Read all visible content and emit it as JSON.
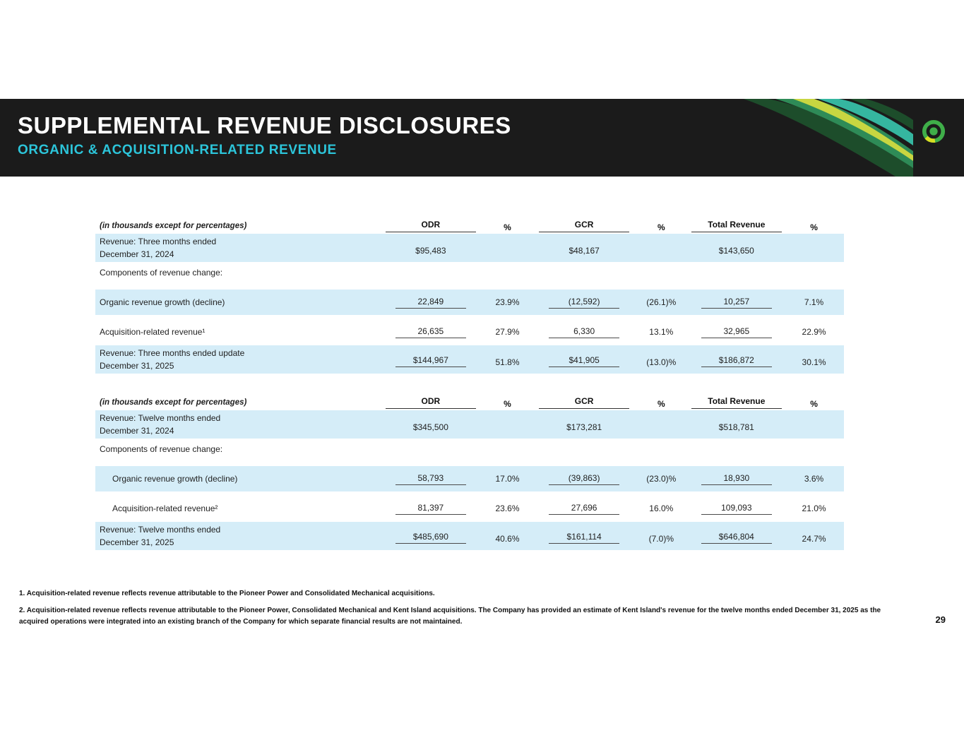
{
  "slide": {
    "title": "SUPPLEMENTAL REVENUE DISCLOSURES",
    "subtitle": "ORGANIC & ACQUISITION-RELATED REVENUE",
    "page_number": "29"
  },
  "colors": {
    "header_bg": "#1b1b1b",
    "accent_cyan": "#2cc5da",
    "row_shade": "#d5edf8",
    "logo_green": "#3fae49",
    "logo_yellow": "#d7df23"
  },
  "icons": {
    "logo": "company-logo-icon",
    "swoosh": "ribbon-swoosh-graphic"
  },
  "tables": [
    {
      "caption": "(in thousands except for percentages)",
      "columns": [
        "ODR",
        "%",
        "GCR",
        "%",
        "Total Revenue",
        "%"
      ],
      "rows": [
        {
          "label": "Revenue: Three months ended",
          "sublabel": "December 31, 2024",
          "values": [
            "$95,483",
            "",
            "$48,167",
            "",
            "$143,650",
            ""
          ],
          "shaded": true,
          "underline": false,
          "indent": false
        },
        {
          "label": "Components of revenue change:",
          "sublabel": "",
          "values": [
            "",
            "",
            "",
            "",
            "",
            ""
          ],
          "shaded": false,
          "underline": false,
          "indent": false
        },
        {
          "label": "Organic revenue growth (decline)",
          "sublabel": "",
          "values": [
            "22,849",
            "23.9%",
            "(12,592)",
            "(26.1)%",
            "10,257",
            "7.1%"
          ],
          "shaded": true,
          "underline": true,
          "indent": false
        },
        {
          "label": "Acquisition-related revenue¹",
          "sublabel": "",
          "values": [
            "26,635",
            "27.9%",
            "6,330",
            "13.1%",
            "32,965",
            "22.9%"
          ],
          "shaded": false,
          "underline": true,
          "indent": false
        },
        {
          "label": "Revenue: Three months ended update",
          "sublabel": "December 31, 2025",
          "values": [
            "$144,967",
            "51.8%",
            "$41,905",
            "(13.0)%",
            "$186,872",
            "30.1%"
          ],
          "shaded": true,
          "underline": true,
          "indent": false
        }
      ]
    },
    {
      "caption": "(in thousands except for percentages)",
      "columns": [
        "ODR",
        "%",
        "GCR",
        "%",
        "Total Revenue",
        "%"
      ],
      "rows": [
        {
          "label": "Revenue: Twelve months ended",
          "sublabel": "December 31, 2024",
          "values": [
            "$345,500",
            "",
            "$173,281",
            "",
            "$518,781",
            ""
          ],
          "shaded": true,
          "underline": false,
          "indent": false
        },
        {
          "label": "Components of revenue change:",
          "sublabel": "",
          "values": [
            "",
            "",
            "",
            "",
            "",
            ""
          ],
          "shaded": false,
          "underline": false,
          "indent": false
        },
        {
          "label": "Organic revenue growth (decline)",
          "sublabel": "",
          "values": [
            "58,793",
            "17.0%",
            "(39,863)",
            "(23.0)%",
            "18,930",
            "3.6%"
          ],
          "shaded": true,
          "underline": true,
          "indent": true
        },
        {
          "label": "Acquisition-related revenue²",
          "sublabel": "",
          "values": [
            "81,397",
            "23.6%",
            "27,696",
            "16.0%",
            "109,093",
            "21.0%"
          ],
          "shaded": false,
          "underline": true,
          "indent": true
        },
        {
          "label": "Revenue: Twelve months ended",
          "sublabel": "December 31, 2025",
          "values": [
            "$485,690",
            "40.6%",
            "$161,114",
            "(7.0)%",
            "$646,804",
            "24.7%"
          ],
          "shaded": true,
          "underline": true,
          "indent": false
        }
      ]
    }
  ],
  "footnotes": [
    "1. Acquisition-related revenue reflects revenue attributable to the Pioneer Power and Consolidated Mechanical acquisitions.",
    "2. Acquisition-related revenue reflects revenue attributable to the Pioneer Power, Consolidated Mechanical and Kent Island acquisitions. The Company has provided an estimate of Kent Island's revenue for the twelve months ended December 31, 2025 as the acquired operations were integrated into an existing branch of the Company for which separate financial results are not maintained."
  ]
}
